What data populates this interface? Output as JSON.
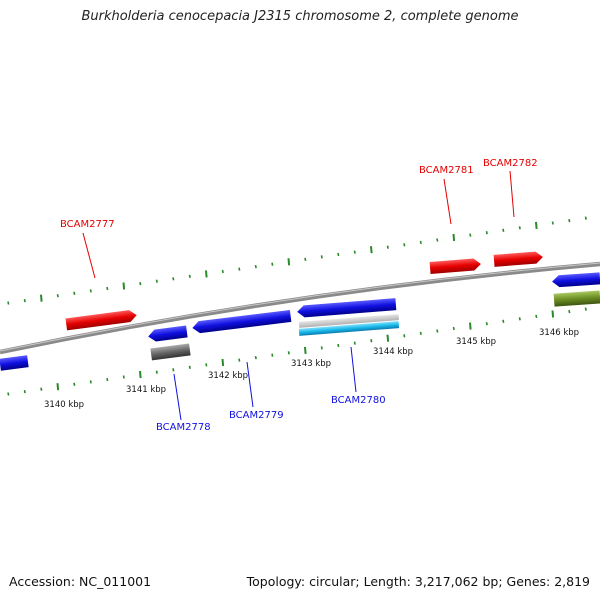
{
  "title": "Burkholderia cenocepacia J2315 chromosome 2, complete genome",
  "accession": "Accession: NC_011001",
  "topology": "Topology: circular; Length: 3,217,062 bp; Genes: 2,819",
  "scale": {
    "labels": [
      "3140 kbp",
      "3141 kbp",
      "3142 kbp",
      "3143 kbp",
      "3144 kbp",
      "3145 kbp",
      "3146 kbp"
    ]
  },
  "genes": {
    "forward_labels": [
      "BCAM2777",
      "BCAM2781",
      "BCAM2782"
    ],
    "reverse_labels": [
      "BCAM2778",
      "BCAM2779",
      "BCAM2780"
    ]
  },
  "colors": {
    "forward": "#e60000",
    "reverse": "#1010e0",
    "backbone": "#8a8a8a",
    "ticks": "#2a8a2a",
    "cyan": "#19b9e8",
    "olive": "#6b8e23",
    "gray_feature": "#666666"
  }
}
